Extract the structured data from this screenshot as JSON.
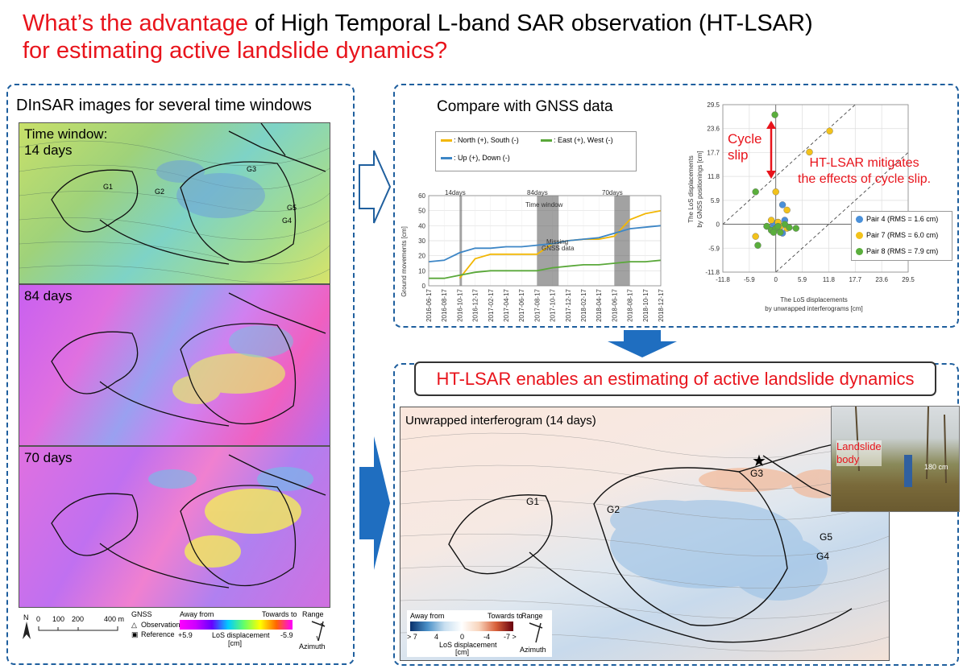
{
  "title": {
    "red_part": "What’s the advantage",
    "rest_part": " of High Temporal L-band SAR observation (HT-LSAR)",
    "line2": "for estimating active landslide dynamics?"
  },
  "left_panel": {
    "heading": "DInSAR images for several time windows",
    "windows": [
      {
        "label_line1": "Time window:",
        "label_line2": "14 days"
      },
      {
        "label_line1": "84 days",
        "label_line2": ""
      },
      {
        "label_line1": "70 days",
        "label_line2": ""
      }
    ],
    "gnss_labels": [
      "G1",
      "G2",
      "G3",
      "G4",
      "G5"
    ],
    "legend": {
      "north": "N",
      "scale_ticks": [
        "0",
        "100",
        "200",
        "400 m"
      ],
      "gnss_title": "GNSS",
      "observation": "Observation",
      "reference": "Reference",
      "away_from": "Away from",
      "towards_to": "Towards to",
      "min_value": "+5.9",
      "max_value": "-5.9",
      "unit_line1": "LoS displacement",
      "unit_line2": "[cm]",
      "range": "Range",
      "azimuth": "Azimuth"
    }
  },
  "top_panel": {
    "heading": "Compare with GNSS data",
    "legend": {
      "north_south": ": North (+), South (-)",
      "east_west": ": East (+), West (-)",
      "up_down": ": Up (+), Down (-)"
    },
    "timeseries": {
      "ylabel": "Ground movements [cm]",
      "window_labels": [
        "14days",
        "84days",
        "70days"
      ],
      "time_window_label": "Time window",
      "missing_label_line1": "Missing",
      "missing_label_line2": "GNSS data"
    },
    "scatter": {
      "ylabel_line1": "The LoS displacements",
      "ylabel_line2": "by GNSS positionings [cm]",
      "xlabel_line1": "The LoS displacements",
      "xlabel_line2": "by unwrapped interferograms [cm]",
      "cycle_slip_line1": "Cycle",
      "cycle_slip_line2": "slip",
      "mitigates_line1": "HT-LSAR mitigates",
      "mitigates_line2": "the effects of cycle slip.",
      "legend": [
        "Pair 4 (RMS = 1.6 cm)",
        "Pair 7 (RMS = 6.0 cm)",
        "Pair 8 (RMS = 7.9 cm)"
      ]
    }
  },
  "bottom_panel": {
    "banner": "HT-LSAR enables an estimating of active landslide dynamics",
    "map_title": "Unwrapped interferogram (14 days)",
    "gnss_labels": [
      "G1",
      "G2",
      "G3",
      "G4",
      "G5"
    ],
    "photo": {
      "landslide_line1": "Landslide",
      "landslide_line2": "body",
      "height": "180 cm"
    },
    "legend": {
      "away_from": "Away from",
      "towards_to": "Towards to",
      "ticks": [
        "> 7",
        "4",
        "0",
        "-4",
        "-7 >"
      ],
      "unit_line1": "LoS displacement",
      "unit_line2": "[cm]",
      "range": "Range",
      "azimuth": "Azimuth"
    }
  },
  "chart_data": [
    {
      "type": "line",
      "title": "",
      "xlabel": "",
      "ylabel": "Ground movements [cm]",
      "ylim": [
        0,
        60
      ],
      "yticks": [
        0,
        10,
        20,
        30,
        40,
        50,
        60
      ],
      "x": [
        "2016-06-17",
        "2016-08-17",
        "2016-10-17",
        "2016-12-17",
        "2017-02-17",
        "2017-04-17",
        "2017-06-17",
        "2017-08-17",
        "2017-10-17",
        "2017-12-17",
        "2018-02-17",
        "2018-04-17",
        "2018-06-17",
        "2018-08-17",
        "2018-10-17",
        "2018-12-17"
      ],
      "series": [
        {
          "name": "North (+), South (-)",
          "color": "#f2b705",
          "values": [
            null,
            null,
            5,
            18,
            21,
            21,
            21,
            21,
            28,
            30,
            31,
            31,
            33,
            44,
            48,
            50
          ]
        },
        {
          "name": "East (+), West (-)",
          "color": "#5aa83a",
          "values": [
            5,
            5,
            7,
            9,
            10,
            10,
            10,
            10,
            12,
            13,
            14,
            14,
            15,
            16,
            16,
            17
          ]
        },
        {
          "name": "Up (+), Down (-)",
          "color": "#3d86c6",
          "values": [
            16,
            17,
            22,
            25,
            25,
            26,
            26,
            27,
            28,
            30,
            31,
            32,
            35,
            38,
            39,
            40
          ]
        }
      ],
      "grid": true
    },
    {
      "type": "scatter",
      "title": "",
      "xlabel": "The LoS displacements by unwrapped interferograms [cm]",
      "ylabel": "The LoS displacements by GNSS positionings [cm]",
      "xlim": [
        -11.8,
        29.5
      ],
      "ylim": [
        -11.8,
        29.5
      ],
      "ticks": [
        -11.8,
        -5.9,
        0,
        5.9,
        11.8,
        17.7,
        23.6,
        29.5
      ],
      "tick_labels": [
        "-11.8",
        "-5.9",
        "0",
        "5.9",
        "11.8",
        "17.7",
        "23.6",
        "29.5"
      ],
      "grid": true,
      "legend_position": "lower-right",
      "series": [
        {
          "name": "Pair 4 (RMS = 1.6 cm)",
          "color": "#4a90d9",
          "points": [
            [
              1.5,
              4.8
            ],
            [
              0.5,
              0.5
            ],
            [
              1,
              -0.5
            ],
            [
              -0.5,
              0.3
            ],
            [
              2,
              1
            ],
            [
              0.8,
              -1.2
            ],
            [
              1.5,
              -2.2
            ],
            [
              -1,
              -1
            ]
          ]
        },
        {
          "name": "Pair 7 (RMS = 6.0 cm)",
          "color": "#f2c21b",
          "points": [
            [
              12,
              23
            ],
            [
              7.5,
              17.8
            ],
            [
              0,
              8
            ],
            [
              2.5,
              3.5
            ],
            [
              -4.5,
              -3
            ],
            [
              -2,
              -0.5
            ],
            [
              1,
              -0.5
            ],
            [
              0.5,
              0.5
            ],
            [
              -1,
              1
            ],
            [
              2.5,
              -1
            ]
          ]
        },
        {
          "name": "Pair 8 (RMS = 7.9 cm)",
          "color": "#5aae3c",
          "points": [
            [
              -0.2,
              27
            ],
            [
              -4.5,
              8
            ],
            [
              -4,
              -5.2
            ],
            [
              -2,
              -0.5
            ],
            [
              -1,
              -1.5
            ],
            [
              0,
              -1
            ],
            [
              1,
              -2
            ],
            [
              2,
              0
            ],
            [
              3,
              -0.8
            ],
            [
              4.5,
              -1
            ],
            [
              0.5,
              -0.5
            ],
            [
              -0.5,
              -2
            ]
          ]
        }
      ]
    }
  ]
}
